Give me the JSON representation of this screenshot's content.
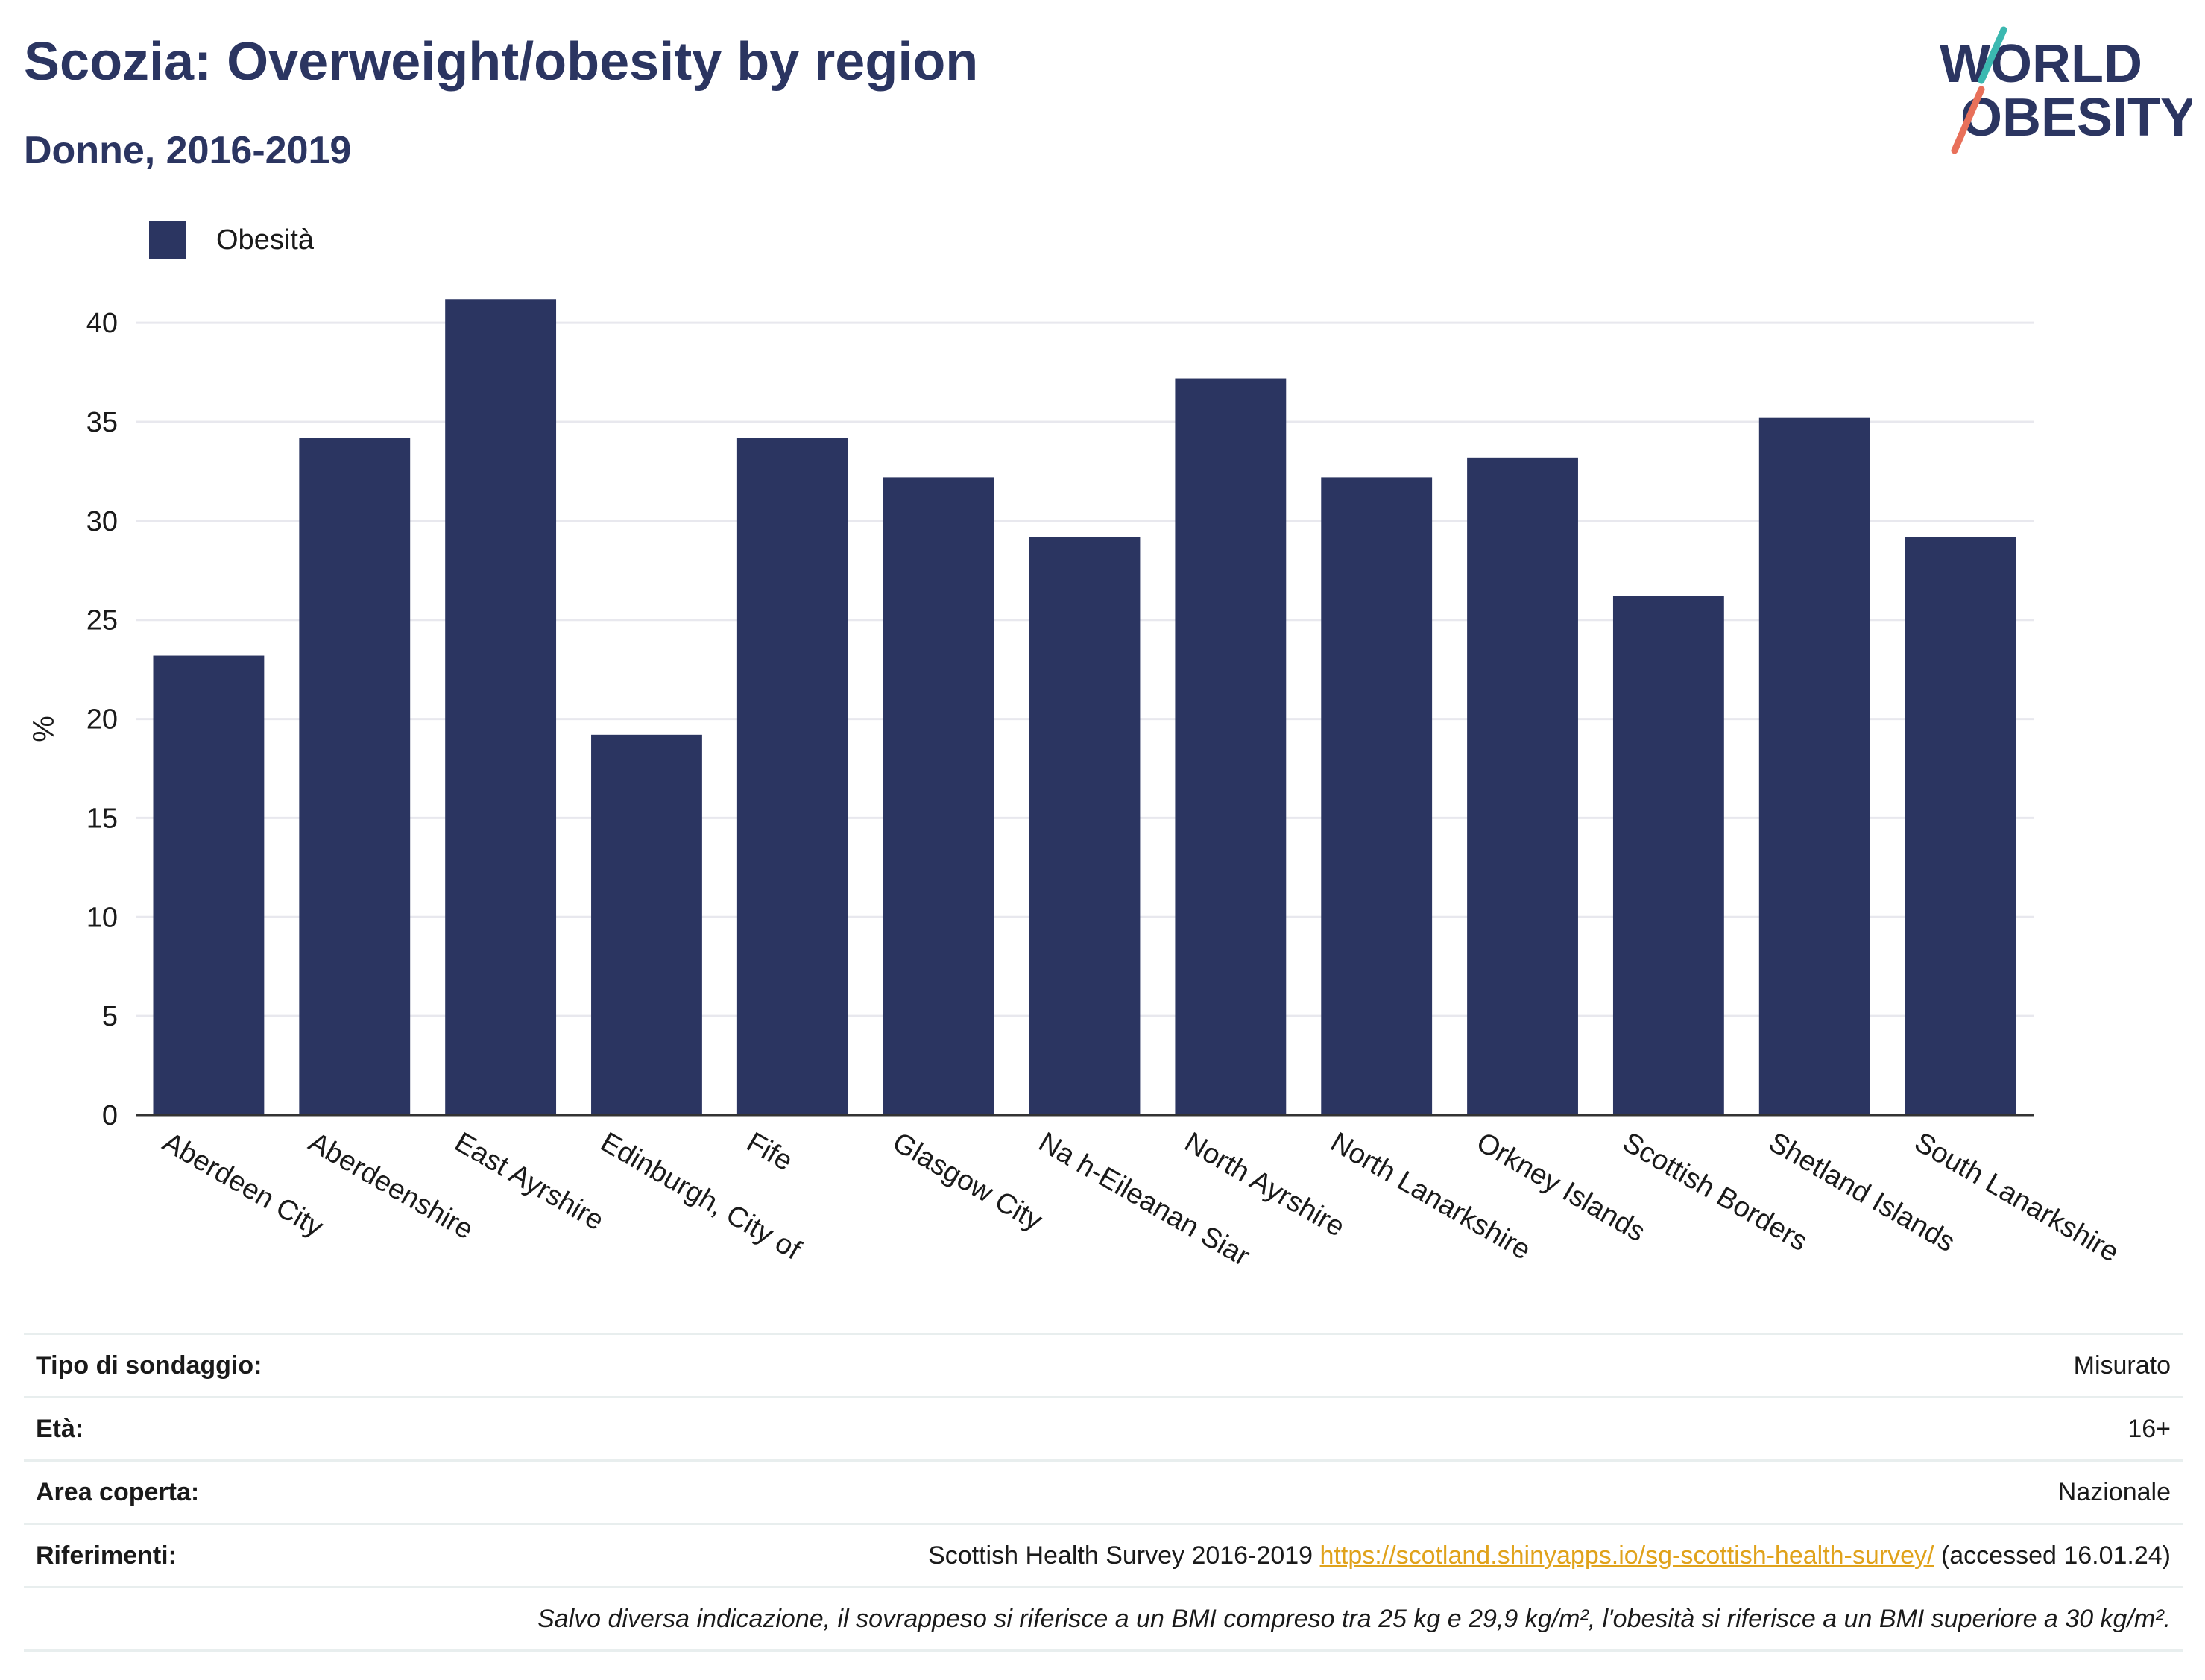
{
  "header": {
    "title": "Scozia: Overweight/obesity by region",
    "subtitle": "Donne, 2016-2019"
  },
  "logo": {
    "line1": "WORLD",
    "line2": "OBESITY"
  },
  "colors": {
    "bar": "#2b3561",
    "title": "#2b3561",
    "link": "#e0a21b",
    "logo_teal": "#3bb8b0",
    "logo_coral": "#e8705a"
  },
  "chart_data": {
    "type": "bar",
    "categories": [
      "Aberdeen City",
      "Aberdeenshire",
      "East Ayrshire",
      "Edinburgh, City of",
      "Fife",
      "Glasgow City",
      "Na h-Eileanan Siar",
      "North Ayrshire",
      "North Lanarkshire",
      "Orkney Islands",
      "Scottish Borders",
      "Shetland Islands",
      "South Lanarkshire"
    ],
    "series": [
      {
        "name": "Obesità",
        "values": [
          23.2,
          34.2,
          41.2,
          19.2,
          34.2,
          32.2,
          29.2,
          37.2,
          32.2,
          33.2,
          26.2,
          35.2,
          29.2
        ]
      }
    ],
    "ylabel": "%",
    "ylim": [
      0,
      42
    ],
    "yticks": [
      0,
      5,
      10,
      15,
      20,
      25,
      30,
      35,
      40
    ],
    "grid": true,
    "legend_position": "top-left"
  },
  "info": {
    "survey_type_label": "Tipo di sondaggio:",
    "survey_type_value": "Misurato",
    "age_label": "Età:",
    "age_value": "16+",
    "area_label": "Area coperta:",
    "area_value": "Nazionale",
    "references_label": "Riferimenti:",
    "references_text": "Scottish Health Survey 2016-2019",
    "references_link": "https://scotland.shinyapps.io/sg-scottish-health-survey/",
    "references_accessed": "(accessed 16.01.24)",
    "note": "Salvo diversa indicazione, il sovrappeso si riferisce a un BMI compreso tra 25 kg e 29,9 kg/m², l'obesità si riferisce a un BMI superiore a 30 kg/m²."
  }
}
